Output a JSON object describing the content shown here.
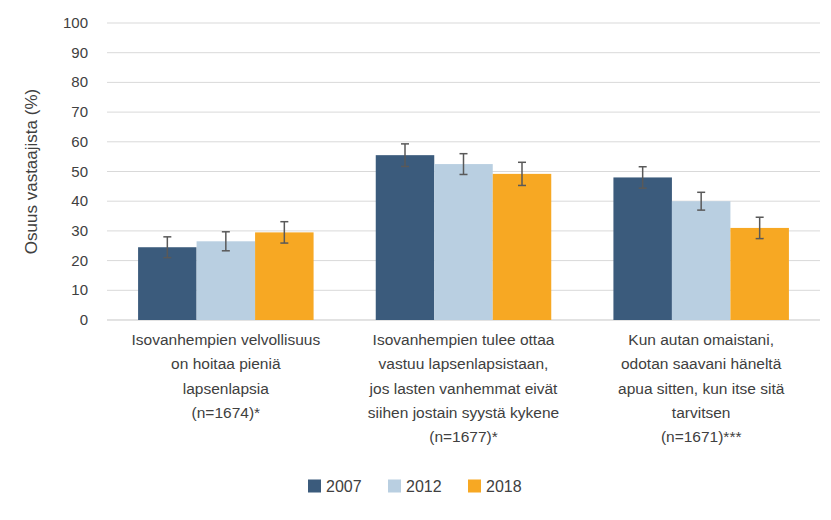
{
  "chart_data": {
    "type": "bar",
    "y_label": "Osuus vastaajista (%)",
    "categories": [
      "Isovanhempien velvollisuus\non hoitaa pieniä\nlapsenlapsia\n(n=1674)*",
      "Isovanhempien tulee ottaa\nvastuu lapsenlapsistaan,\njos lasten vanhemmat eivät\nsiihen jostain syystä kykene\n(n=1677)*",
      "Kun autan omaistani,\nodotan saavani häneltä\napua sitten, kun itse sitä\ntarvitsen\n(n=1671)***"
    ],
    "series": [
      {
        "name": "2007",
        "color": "#3b5b7c",
        "values": [
          24.5,
          55.5,
          48
        ],
        "errors": [
          3.5,
          3.8,
          3.6
        ]
      },
      {
        "name": "2012",
        "color": "#b9cfe1",
        "values": [
          26.5,
          52.5,
          40
        ],
        "errors": [
          3.2,
          3.5,
          3.0
        ]
      },
      {
        "name": "2018",
        "color": "#f7a823",
        "values": [
          29.5,
          49.2,
          31
        ],
        "errors": [
          3.6,
          3.9,
          3.6
        ]
      }
    ],
    "ylim": [
      0,
      100
    ],
    "yticks": [
      0,
      10,
      20,
      30,
      40,
      50,
      60,
      70,
      80,
      90,
      100
    ],
    "grid": true,
    "legend": "bottom"
  }
}
